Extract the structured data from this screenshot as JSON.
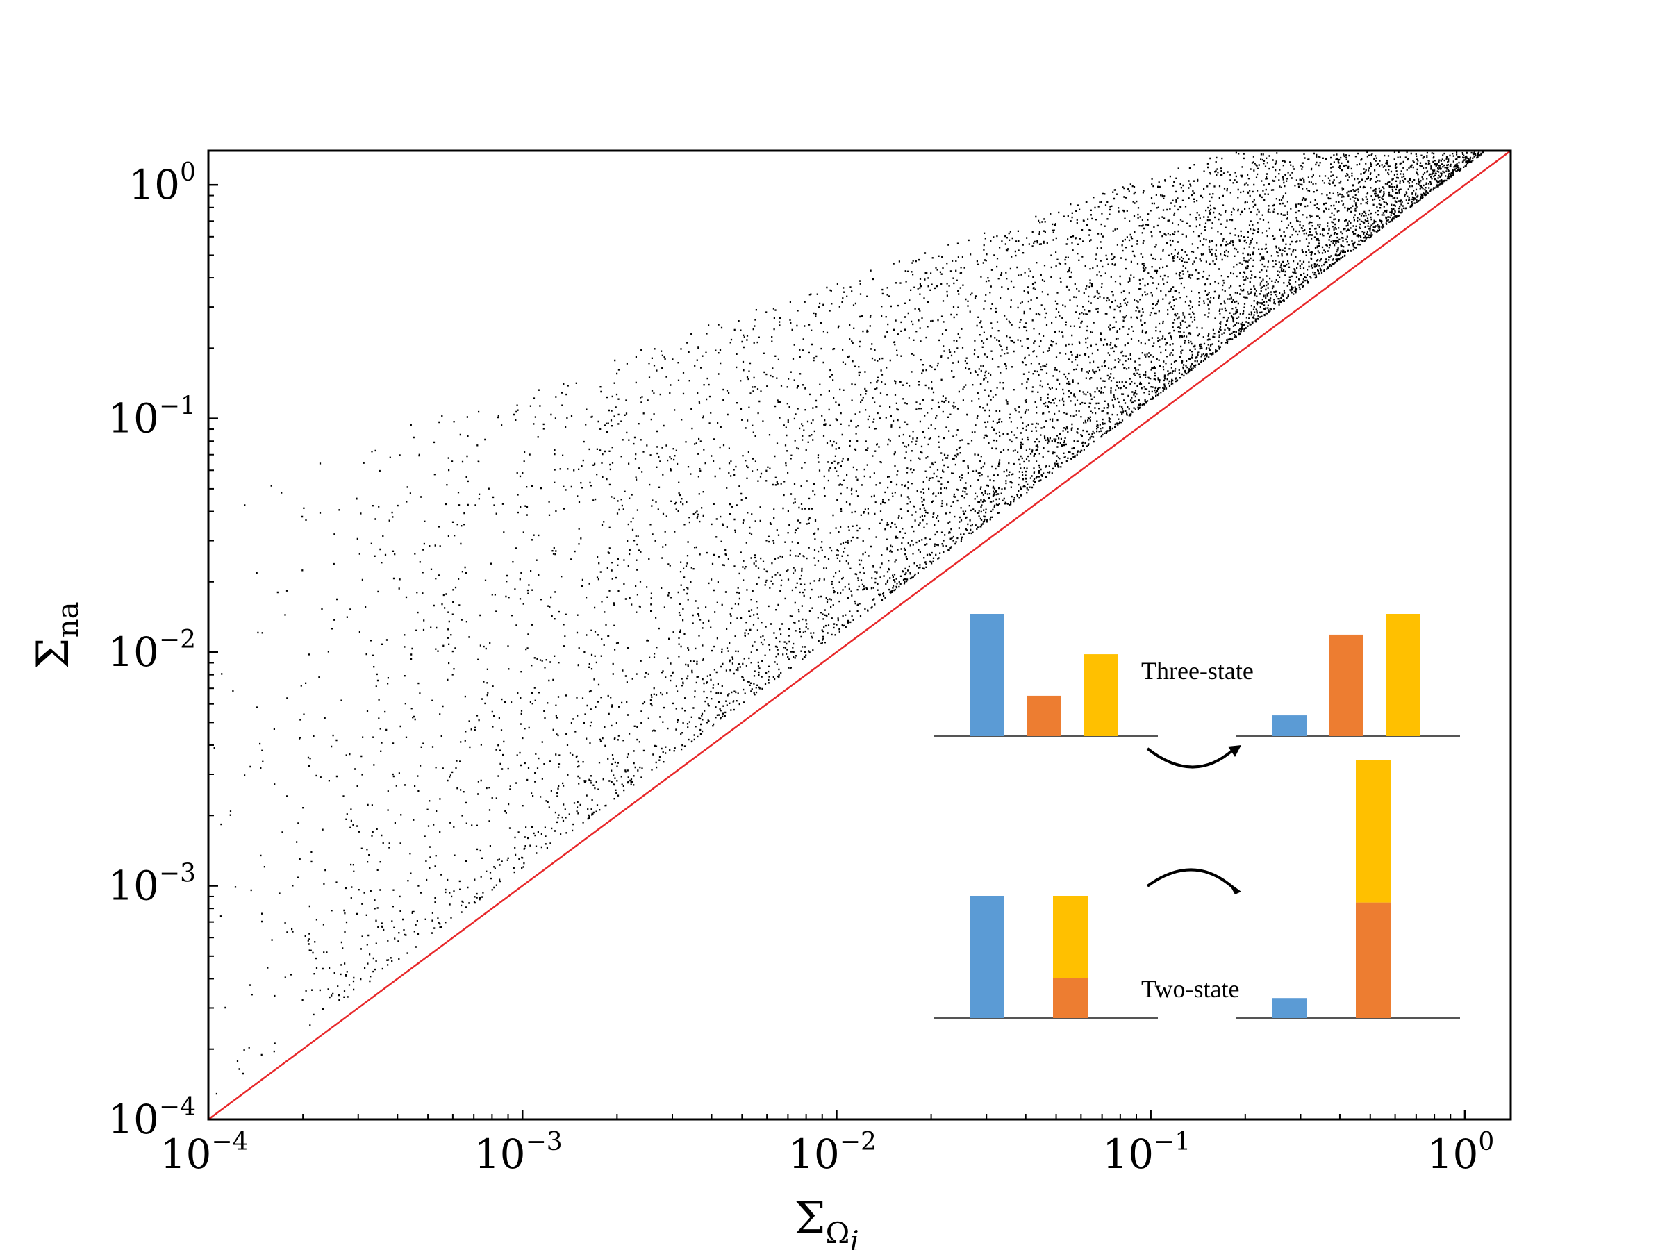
{
  "chart_data": {
    "type": "scatter",
    "title": "",
    "xlabel": "Σ_{Ω_i}",
    "ylabel": "Σ_na",
    "x_scale": "log",
    "y_scale": "log",
    "xlim": [
      0.0001,
      1.4
    ],
    "ylim": [
      0.0001,
      1.4
    ],
    "x_ticks": [
      0.0001,
      0.001,
      0.01,
      0.1,
      1
    ],
    "x_tick_labels": [
      {
        "base": "10",
        "exp": "−4"
      },
      {
        "base": "10",
        "exp": "−3"
      },
      {
        "base": "10",
        "exp": "−2"
      },
      {
        "base": "10",
        "exp": "−1"
      },
      {
        "base": "10",
        "exp": "0"
      }
    ],
    "y_ticks": [
      0.0001,
      0.001,
      0.01,
      0.1,
      1
    ],
    "y_tick_labels": [
      {
        "base": "10",
        "exp": "−4"
      },
      {
        "base": "10",
        "exp": "−3"
      },
      {
        "base": "10",
        "exp": "−2"
      },
      {
        "base": "10",
        "exp": "−1"
      },
      {
        "base": "10",
        "exp": "0"
      }
    ],
    "grid": false,
    "series": [
      {
        "kind": "scatter",
        "color": "#000000",
        "point_count_shown": 9000,
        "x_range": [
          0.0001,
          1.3
        ],
        "y_range": [
          0.0002,
          1.4
        ],
        "density_note_values": [
          [
            0.5,
            0.6
          ],
          [
            0.2,
            0.3
          ],
          [
            0.1,
            0.15
          ],
          [
            0.05,
            0.1
          ],
          [
            0.02,
            0.05
          ],
          [
            0.01,
            0.03
          ],
          [
            0.005,
            0.015
          ],
          [
            0.003,
            0.01
          ],
          [
            0.001,
            0.003
          ],
          [
            0.0005,
            0.001
          ],
          [
            0.0002,
            0.0005
          ]
        ]
      },
      {
        "kind": "line",
        "color": "#e8282a",
        "x": [
          0.0001,
          1.4
        ],
        "y": [
          0.0001,
          1.4
        ]
      }
    ]
  },
  "inset": {
    "colors": {
      "blue": "#5b9bd5",
      "orange": "#ed7d31",
      "yellow": "#ffc000",
      "axis": "#555555",
      "arrow": "#000000"
    },
    "three_state": {
      "label": "Three-state",
      "before": {
        "blue": 1.0,
        "orange": 0.33,
        "yellow": 0.67
      },
      "after": {
        "blue": 0.17,
        "orange": 0.83,
        "yellow": 1.0
      }
    },
    "two_state": {
      "label": "Two-state",
      "before": {
        "blue": 0.55,
        "orange": 0.18,
        "yellow": 0.37
      },
      "after": {
        "blue": 0.09,
        "orange": 0.52,
        "yellow": 0.64
      }
    }
  }
}
